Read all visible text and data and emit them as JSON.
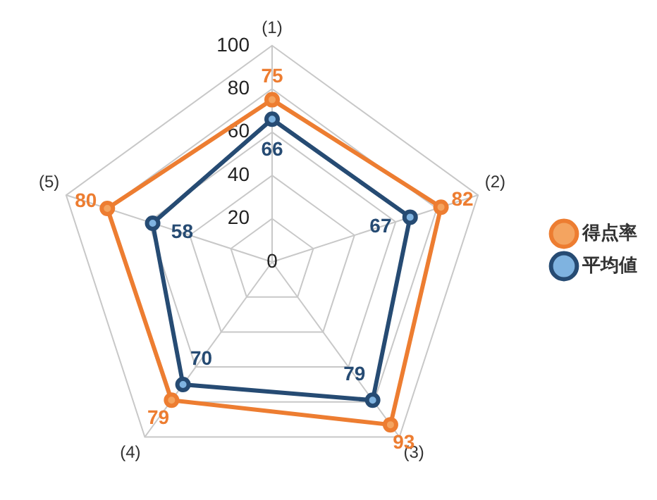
{
  "chart_data": {
    "type": "radar",
    "categories": [
      "(1)",
      "(2)",
      "(3)",
      "(4)",
      "(5)"
    ],
    "series": [
      {
        "name": "得点率",
        "color": "#ed7d31",
        "values": [
          75,
          82,
          93,
          79,
          80
        ]
      },
      {
        "name": "平均値",
        "color": "#264b73",
        "values": [
          66,
          67,
          79,
          70,
          58
        ]
      }
    ],
    "ylim": [
      0,
      100
    ],
    "yticks": [
      0,
      20,
      40,
      60,
      80,
      100
    ],
    "grid": true,
    "legend": "right",
    "marker": "circle",
    "data_labels": true
  }
}
